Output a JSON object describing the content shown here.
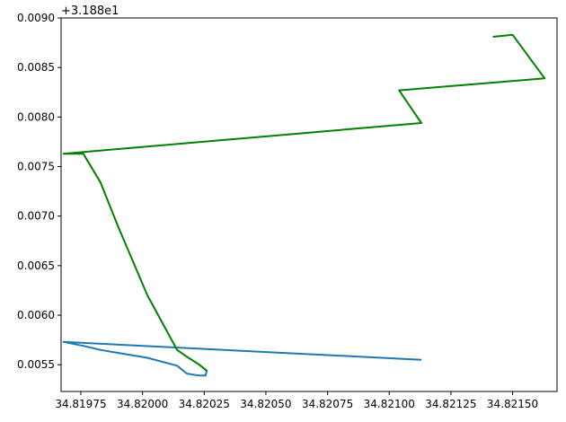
{
  "chart_data": {
    "type": "line",
    "title": "",
    "xlabel": "",
    "ylabel": "",
    "y_offset_label": "+3.188e1",
    "xlim": [
      34.81967,
      34.82168
    ],
    "ylim": [
      0.00523,
      0.009
    ],
    "x_ticks": [
      34.81975,
      34.82,
      34.82025,
      34.8205,
      34.82075,
      34.821,
      34.82125,
      34.8215
    ],
    "x_tick_labels": [
      "34.81975",
      "34.82000",
      "34.82025",
      "34.82050",
      "34.82075",
      "34.82100",
      "34.82125",
      "34.82150"
    ],
    "y_ticks": [
      0.0055,
      0.006,
      0.0065,
      0.007,
      0.0075,
      0.008,
      0.0085,
      0.009
    ],
    "y_tick_labels": [
      "0.0055",
      "0.0060",
      "0.0065",
      "0.0070",
      "0.0075",
      "0.0080",
      "0.0085",
      "0.0090"
    ],
    "grid": false,
    "series": [
      {
        "color": "#1f77b4",
        "x": [
          34.82025,
          34.82026,
          34.820256,
          34.82023,
          34.82018,
          34.82014,
          34.82002,
          34.8199,
          34.81983,
          34.81976,
          34.81968,
          34.82113
        ],
        "y": [
          0.00546,
          0.00544,
          0.00539,
          0.00539,
          0.00541,
          0.00549,
          0.00557,
          0.00562,
          0.00565,
          0.00569,
          0.00573,
          0.00555
        ]
      },
      {
        "color": "#008000",
        "x": [
          34.82025,
          34.82026,
          34.82023,
          34.82018,
          34.82014,
          34.82002,
          34.8199,
          34.81983,
          34.81976,
          34.81968,
          34.82113,
          34.82104,
          34.82163,
          34.8215,
          34.82142
        ],
        "y": [
          0.00546,
          0.00544,
          0.0055,
          0.00558,
          0.00565,
          0.0062,
          0.0069,
          0.00734,
          0.00763,
          0.00763,
          0.00794,
          0.00827,
          0.00839,
          0.00883,
          0.00881
        ]
      }
    ]
  }
}
